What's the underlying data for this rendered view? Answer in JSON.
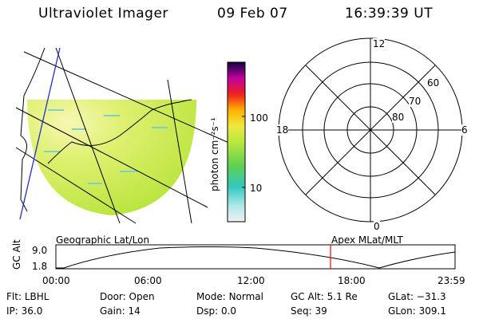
{
  "header": {
    "instrument": "Ultraviolet Imager",
    "date": "09 Feb 07",
    "time": "16:39:39 UT"
  },
  "colorbar": {
    "unit_label": "photon cm⁻²s⁻¹",
    "ticks": [
      "100",
      "10"
    ]
  },
  "polar_plot": {
    "mlt_labels": {
      "top": "12",
      "left": "18",
      "right": "6",
      "bottom": "0"
    },
    "lat_labels": [
      "60",
      "70",
      "80"
    ]
  },
  "timeline": {
    "left_title": "Geographic Lat/Lon",
    "right_title": "Apex MLat/MLT",
    "y_axis_label": "GC Alt",
    "y_ticks": [
      "9.0",
      "1.8"
    ],
    "x_ticks": [
      "00:00",
      "06:00",
      "12:00",
      "18:00",
      "23:59"
    ],
    "current_marker_color": "#ff0000"
  },
  "footer": {
    "row1": [
      {
        "label": "Flt:",
        "value": "LBHL"
      },
      {
        "label": "Door:",
        "value": "Open"
      },
      {
        "label": "Mode:",
        "value": "Normal"
      },
      {
        "label": "GC Alt:",
        "value": "5.1 Re"
      },
      {
        "label": "GLat:",
        "value": "−31.3"
      }
    ],
    "row2": [
      {
        "label": "IP:",
        "value": "36.0"
      },
      {
        "label": "Gain:",
        "value": "14"
      },
      {
        "label": "Dsp:",
        "value": "0.0"
      },
      {
        "label": "Seq:",
        "value": "39"
      },
      {
        "label": "GLon:",
        "value": "309.1"
      }
    ]
  },
  "colors": {
    "image_base": "#c8ec4a",
    "coast": "#000000",
    "meridian": "#2030c0"
  }
}
